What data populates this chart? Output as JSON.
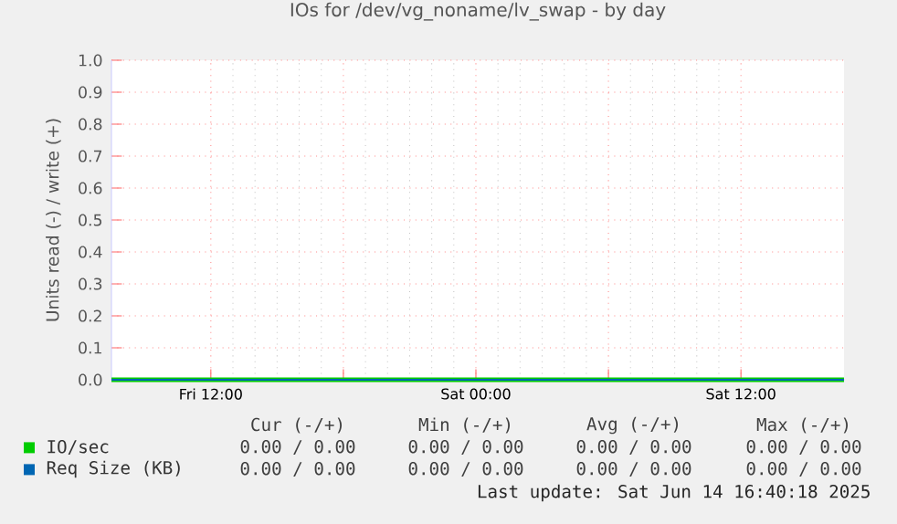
{
  "chart_data": {
    "type": "line",
    "title": "IOs for /dev/vg_noname/lv_swap - by day",
    "ylabel": "Units read (-) / write (+)",
    "series": [
      {
        "name": "IO/sec",
        "color": "#00cc00",
        "values": [
          0,
          0
        ]
      },
      {
        "name": "Req Size (KB)",
        "color": "#0066b3",
        "values": [
          0,
          0
        ]
      }
    ],
    "x": [
      "2025-06-13T07:30",
      "2025-06-14T16:40"
    ],
    "xlim": [
      "2025-06-13T07:30",
      "2025-06-14T16:40"
    ],
    "xticks": [
      {
        "value": "2025-06-13T12:00",
        "label": "Fri 12:00"
      },
      {
        "value": "2025-06-13T18:00",
        "label": null
      },
      {
        "value": "2025-06-14T00:00",
        "label": "Sat 00:00"
      },
      {
        "value": "2025-06-14T06:00",
        "label": null
      },
      {
        "value": "2025-06-14T12:00",
        "label": "Sat 12:00"
      }
    ],
    "ylim": [
      0,
      1
    ],
    "yticks": [
      {
        "value": 0,
        "label": "0.0"
      },
      {
        "value": 0.1,
        "label": "0.1"
      },
      {
        "value": 0.2,
        "label": "0.2"
      },
      {
        "value": 0.3,
        "label": "0.3"
      },
      {
        "value": 0.4,
        "label": "0.4"
      },
      {
        "value": 0.5,
        "label": "0.5"
      },
      {
        "value": 0.6,
        "label": "0.6"
      },
      {
        "value": 0.7,
        "label": "0.7"
      },
      {
        "value": 0.8,
        "label": "0.8"
      },
      {
        "value": 0.9,
        "label": "0.9"
      },
      {
        "value": 1,
        "label": "1.0"
      }
    ],
    "grid": true,
    "legend": "bottom",
    "annotations": [
      "Cur (-/+)",
      "Min (-/+)",
      "Avg (-/+)",
      "Max (-/+)",
      "0.00 / 0.00",
      "0.00 / 0.00",
      "0.00 / 0.00",
      "0.00 / 0.00",
      "0.00 / 0.00",
      "0.00 / 0.00",
      "0.00 / 0.00",
      "0.00 / 0.00",
      "Last update: Sat Jun 14 16:40:18 2025"
    ]
  }
}
